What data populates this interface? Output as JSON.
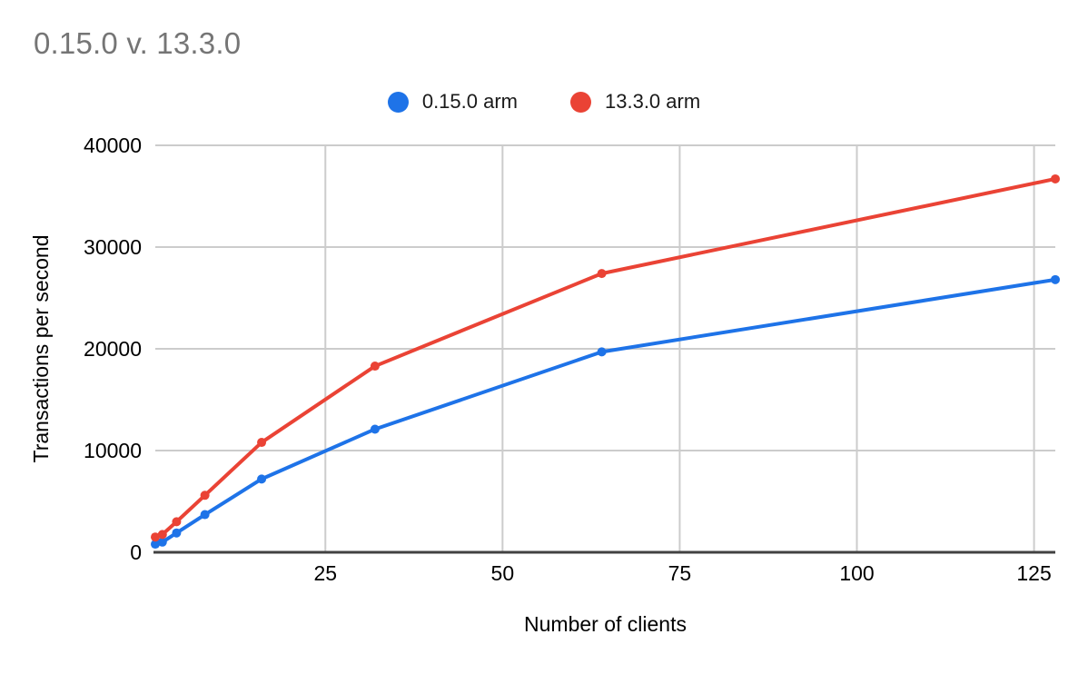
{
  "chart_data": {
    "type": "line",
    "title": "0.15.0 v. 13.3.0",
    "xlabel": "Number of clients",
    "ylabel": "Transactions per second",
    "x": [
      1,
      2,
      4,
      8,
      16,
      32,
      64,
      128
    ],
    "series": [
      {
        "name": "0.15.0 arm",
        "color": "#1e73e8",
        "values": [
          800,
          1000,
          1900,
          3700,
          7200,
          12100,
          19700,
          26800
        ]
      },
      {
        "name": "13.3.0 arm",
        "color": "#ea4335",
        "values": [
          1500,
          1750,
          3000,
          5600,
          10800,
          18300,
          27400,
          36700
        ]
      }
    ],
    "x_ticks": [
      25,
      50,
      75,
      100,
      125
    ],
    "y_ticks": [
      0,
      10000,
      20000,
      30000,
      40000
    ],
    "xlim": [
      1,
      128
    ],
    "ylim": [
      0,
      40000
    ],
    "grid": true,
    "legend_position": "top",
    "colors": {
      "gridline": "#cccccc",
      "axis_line": "#424242",
      "tick_label": "#000000",
      "title": "#757575"
    }
  }
}
